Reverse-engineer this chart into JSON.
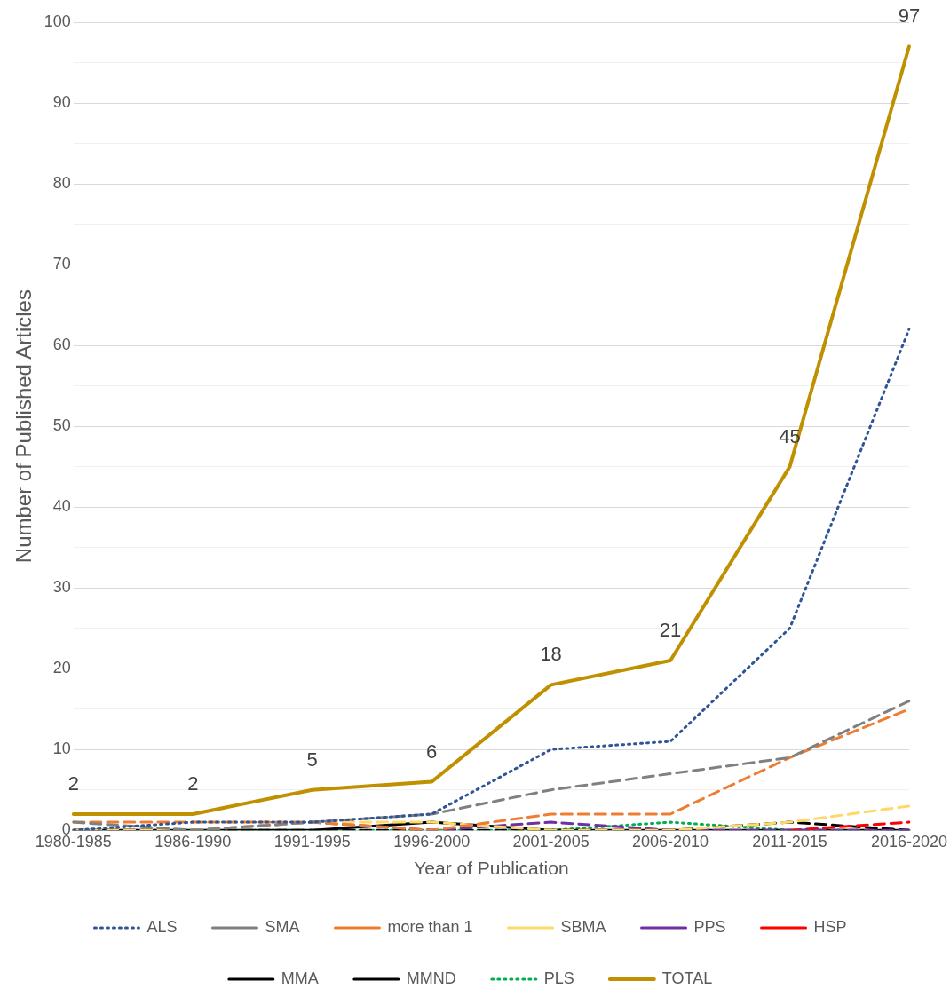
{
  "chart_data": {
    "type": "line",
    "xlabel": "Year of Publication",
    "ylabel": "Number of Published Articles",
    "categories": [
      "1980-1985",
      "1986-1990",
      "1991-1995",
      "1996-2000",
      "2001-2005",
      "2006-2010",
      "2011-2015",
      "2016-2020"
    ],
    "ylim": [
      0,
      100
    ],
    "yticks": [
      0,
      {
        "value": 5,
        "label": null
      },
      10,
      {
        "value": 15,
        "label": null
      },
      20,
      {
        "value": 25,
        "label": null
      },
      30,
      {
        "value": 35,
        "label": null
      },
      40,
      {
        "value": 45,
        "label": null
      },
      50,
      {
        "value": 55,
        "label": null
      },
      60,
      {
        "value": 65,
        "label": null
      },
      70,
      {
        "value": 75,
        "label": null
      },
      80,
      {
        "value": 85,
        "label": null
      },
      90,
      {
        "value": 95,
        "label": null
      },
      100
    ],
    "grid": "y",
    "legend": "bottom",
    "marker": "none",
    "series": [
      {
        "name": "ALS",
        "color": "#2f5597",
        "line_style": "dotted",
        "values": [
          0,
          1,
          1,
          2,
          10,
          11,
          25,
          62
        ]
      },
      {
        "name": "SMA",
        "color": "#808080",
        "line_style": "dashed",
        "values": [
          1,
          0,
          1,
          2,
          5,
          7,
          9,
          16
        ]
      },
      {
        "name": "more than 1",
        "color": "#ed7d31",
        "line_style": "dashed",
        "values": [
          1,
          1,
          1,
          0,
          2,
          2,
          9,
          15
        ]
      },
      {
        "name": "SBMA",
        "color": "#ffd966",
        "line_style": "dashed",
        "values": [
          0,
          0,
          1,
          1,
          0,
          0,
          1,
          3
        ]
      },
      {
        "name": "PPS",
        "color": "#7030a0",
        "line_style": "dashed",
        "values": [
          0,
          0,
          1,
          0,
          1,
          0,
          0,
          0
        ]
      },
      {
        "name": "HSP",
        "color": "#ff0000",
        "line_style": "dashed",
        "values": [
          null,
          null,
          null,
          null,
          null,
          null,
          0,
          1
        ]
      },
      {
        "name": "MMA",
        "color": "#000000",
        "line_style": "dashed",
        "values": [
          0,
          0,
          0,
          0,
          0,
          0,
          1,
          0
        ]
      },
      {
        "name": "MMND",
        "color": "#000000",
        "line_style": "solid",
        "values": [
          0,
          0,
          0,
          1,
          0,
          0,
          0,
          0
        ]
      },
      {
        "name": "PLS",
        "color": "#00b050",
        "line_style": "dotted",
        "values": [
          0,
          0,
          0,
          0,
          0,
          1,
          0,
          0
        ]
      },
      {
        "name": "TOTAL",
        "color": "#bf9000",
        "line_style": "solid",
        "values": [
          2,
          2,
          5,
          6,
          18,
          21,
          45,
          97
        ],
        "value_labels": [
          "2",
          "2",
          "5",
          "6",
          "18",
          "21",
          "45",
          "97"
        ]
      }
    ]
  }
}
